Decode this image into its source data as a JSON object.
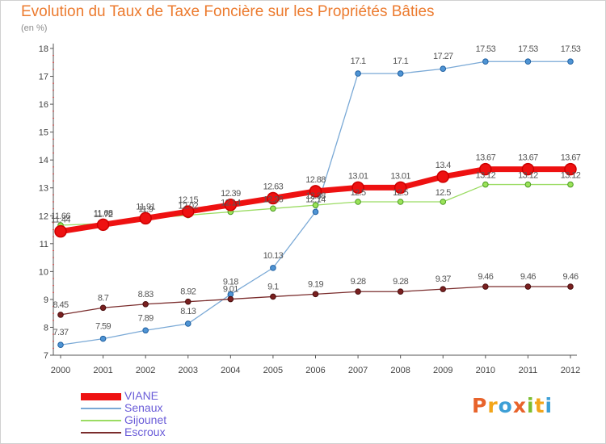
{
  "header": {
    "title": "Evolution du Taux de Taxe Foncière sur les Propriétés Bâties",
    "unit": "(en %)"
  },
  "logo": {
    "letters": [
      "P",
      "r",
      "o",
      "x",
      "i",
      "t",
      "i"
    ],
    "colors": [
      "#e8632b",
      "#f2a51a",
      "#3d9fd6",
      "#e8632b",
      "#7cbd2f",
      "#f2a51a",
      "#3d9fd6"
    ]
  },
  "chart_data": {
    "type": "line",
    "title": "Evolution du Taux de Taxe Foncière sur les Propriétés Bâties",
    "ylabel": "(en %)",
    "xlabel": "",
    "categories": [
      "2000",
      "2001",
      "2002",
      "2003",
      "2004",
      "2005",
      "2006",
      "2007",
      "2008",
      "2009",
      "2010",
      "2011",
      "2012"
    ],
    "ylim": [
      7,
      18
    ],
    "yticks": [
      7,
      8,
      9,
      10,
      11,
      12,
      13,
      14,
      15,
      16,
      17,
      18
    ],
    "grid": false,
    "legend_position": "bottom-left",
    "series": [
      {
        "name": "VIANE",
        "color": "#ee1111",
        "values": [
          11.44,
          11.68,
          11.91,
          12.15,
          12.39,
          12.63,
          12.88,
          13.01,
          13.01,
          13.4,
          13.67,
          13.67,
          13.67
        ],
        "labels": [
          "11.44",
          "11.68",
          "11.91",
          "12.15",
          "12.39",
          "12.63",
          "12.88",
          "13.01",
          "13.01",
          "13.4",
          "13.67",
          "13.67",
          "13.67"
        ]
      },
      {
        "name": "Senaux",
        "color": "#7aa9d6",
        "values": [
          7.37,
          7.59,
          7.89,
          8.13,
          9.18,
          10.13,
          12.14,
          17.1,
          17.1,
          17.27,
          17.53,
          17.53,
          17.53
        ],
        "labels": [
          "7.37",
          "7.59",
          "7.89",
          "8.13",
          "9.18",
          "10.13",
          "12.14",
          "17.1",
          "17.1",
          "17.27",
          "17.53",
          "17.53",
          "17.53"
        ]
      },
      {
        "name": "Gijounet",
        "color": "#9bdc63",
        "values": [
          11.66,
          11.72,
          11.9,
          12.02,
          12.14,
          12.26,
          12.38,
          12.5,
          12.5,
          12.5,
          13.12,
          13.12,
          13.12
        ],
        "labels": [
          "11.66",
          "11.72",
          "11.9",
          "12.02",
          "12.14",
          "12.26",
          "12.38",
          "12.5",
          "12.5",
          "12.5",
          "13.12",
          "13.12",
          "13.12"
        ]
      },
      {
        "name": "Escroux",
        "color": "#7a2c2c",
        "values": [
          8.45,
          8.7,
          8.83,
          8.92,
          9.01,
          9.1,
          9.19,
          9.28,
          9.28,
          9.37,
          9.46,
          9.46,
          9.46
        ],
        "labels": [
          "8.45",
          "8.7",
          "8.83",
          "8.92",
          "9.01",
          "9.1",
          "9.19",
          "9.28",
          "9.28",
          "9.37",
          "9.46",
          "9.46",
          "9.46"
        ]
      }
    ]
  }
}
